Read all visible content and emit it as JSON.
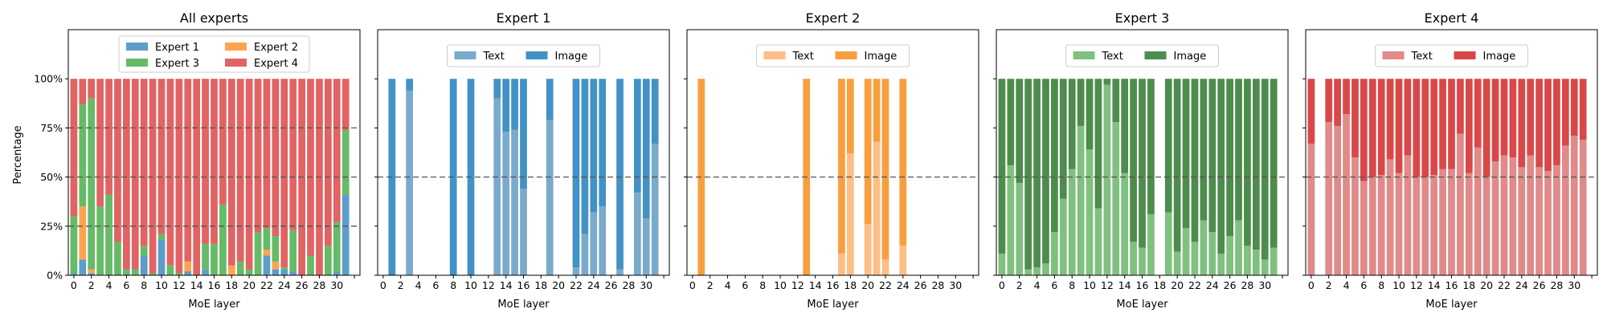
{
  "figure": {
    "ylabel": "Percentage",
    "xlabel": "MoE layer",
    "y_ticks": [
      "0%",
      "25%",
      "50%",
      "75%",
      "100%"
    ],
    "x_ticks": [
      "0",
      "2",
      "4",
      "6",
      "8",
      "10",
      "12",
      "14",
      "16",
      "18",
      "20",
      "22",
      "24",
      "26",
      "28",
      "30"
    ]
  },
  "chart_data": [
    {
      "type": "bar",
      "stacked": true,
      "title": "All experts",
      "xlabel": "MoE layer",
      "ylabel": "Percentage",
      "ylim": [
        0,
        125
      ],
      "reference_lines": [
        25,
        50,
        75
      ],
      "legend": {
        "placement": "upper-center",
        "columns": 2
      },
      "categories": [
        0,
        1,
        2,
        3,
        4,
        5,
        6,
        7,
        8,
        9,
        10,
        11,
        12,
        13,
        14,
        15,
        16,
        17,
        18,
        19,
        20,
        21,
        22,
        23,
        24,
        25,
        26,
        27,
        28,
        29,
        30,
        31
      ],
      "series": [
        {
          "name": "Expert 1",
          "color": "#1f77b4",
          "values": [
            1,
            8,
            1,
            0,
            0,
            0,
            0,
            0,
            10,
            0,
            18,
            0,
            0,
            2,
            0,
            3,
            0,
            0,
            0,
            0,
            0,
            0,
            10,
            3,
            3,
            2,
            0,
            0,
            0,
            0,
            2,
            41
          ]
        },
        {
          "name": "Expert 2",
          "color": "#ff7f0e",
          "values": [
            0,
            27,
            2,
            0,
            0,
            0,
            0,
            0,
            0,
            0,
            0,
            0,
            0,
            5,
            0,
            0,
            0,
            0,
            5,
            0,
            0,
            0,
            3,
            4,
            0,
            0,
            0,
            0,
            0,
            0,
            0,
            0
          ]
        },
        {
          "name": "Expert 3",
          "color": "#2ca02c",
          "values": [
            29,
            52,
            87,
            35,
            41,
            17,
            3,
            3,
            5,
            1,
            3,
            5,
            1,
            0,
            0,
            13,
            16,
            36,
            0,
            7,
            3,
            22,
            11,
            13,
            1,
            21,
            0,
            10,
            0,
            15,
            25,
            33
          ]
        },
        {
          "name": "Expert 4",
          "color": "#d62728",
          "values": [
            70,
            13,
            10,
            65,
            59,
            83,
            97,
            97,
            85,
            99,
            79,
            95,
            99,
            93,
            100,
            84,
            84,
            64,
            95,
            93,
            97,
            78,
            76,
            80,
            96,
            77,
            100,
            90,
            100,
            85,
            73,
            26
          ]
        }
      ]
    },
    {
      "type": "bar",
      "stacked": true,
      "title": "Expert 1",
      "xlabel": "MoE layer",
      "ylim": [
        0,
        125
      ],
      "reference_lines": [
        50
      ],
      "legend": {
        "placement": "upper-center",
        "columns": 2
      },
      "categories": [
        0,
        1,
        2,
        3,
        4,
        5,
        6,
        7,
        8,
        9,
        10,
        11,
        12,
        13,
        14,
        15,
        16,
        17,
        18,
        19,
        20,
        21,
        22,
        23,
        24,
        25,
        26,
        27,
        28,
        29,
        30,
        31
      ],
      "series": [
        {
          "name": "Text",
          "color": "#7aaacc",
          "values": [
            0,
            0,
            0,
            94,
            0,
            0,
            0,
            0,
            0,
            0,
            0,
            0,
            0,
            90,
            73,
            74,
            44,
            0,
            0,
            79,
            0,
            0,
            4,
            21,
            32,
            35,
            0,
            3,
            0,
            42,
            29,
            67
          ]
        },
        {
          "name": "Image",
          "color": "#4292c6",
          "values": [
            0,
            100,
            0,
            6,
            0,
            0,
            0,
            0,
            100,
            0,
            100,
            0,
            0,
            10,
            27,
            26,
            56,
            0,
            0,
            21,
            0,
            0,
            96,
            79,
            68,
            65,
            0,
            97,
            0,
            58,
            71,
            33
          ]
        }
      ]
    },
    {
      "type": "bar",
      "stacked": true,
      "title": "Expert 2",
      "xlabel": "MoE layer",
      "ylim": [
        0,
        125
      ],
      "reference_lines": [
        50
      ],
      "legend": {
        "placement": "upper-center",
        "columns": 2
      },
      "categories": [
        0,
        1,
        2,
        3,
        4,
        5,
        6,
        7,
        8,
        9,
        10,
        11,
        12,
        13,
        14,
        15,
        16,
        17,
        18,
        19,
        20,
        21,
        22,
        23,
        24,
        25,
        26,
        27,
        28,
        29,
        30,
        31
      ],
      "series": [
        {
          "name": "Text",
          "color": "#fdbf85",
          "values": [
            0,
            0,
            0,
            0,
            0,
            0,
            0,
            0,
            0,
            0,
            0,
            0,
            0,
            0,
            0,
            0,
            0,
            11,
            62,
            0,
            26,
            68,
            8,
            0,
            15,
            0,
            0,
            0,
            0,
            0,
            0,
            0
          ]
        },
        {
          "name": "Image",
          "color": "#f99e3f",
          "values": [
            0,
            100,
            0,
            0,
            0,
            0,
            0,
            0,
            0,
            0,
            0,
            0,
            0,
            100,
            0,
            0,
            0,
            89,
            38,
            0,
            74,
            32,
            92,
            0,
            85,
            0,
            0,
            0,
            0,
            0,
            0,
            0
          ]
        }
      ]
    },
    {
      "type": "bar",
      "stacked": true,
      "title": "Expert 3",
      "xlabel": "MoE layer",
      "ylim": [
        0,
        125
      ],
      "reference_lines": [
        50
      ],
      "legend": {
        "placement": "upper-center",
        "columns": 2
      },
      "categories": [
        0,
        1,
        2,
        3,
        4,
        5,
        6,
        7,
        8,
        9,
        10,
        11,
        12,
        13,
        14,
        15,
        16,
        17,
        18,
        19,
        20,
        21,
        22,
        23,
        24,
        25,
        26,
        27,
        28,
        29,
        30,
        31
      ],
      "series": [
        {
          "name": "Text",
          "color": "#80c080",
          "values": [
            11,
            56,
            47,
            3,
            4,
            6,
            22,
            39,
            54,
            76,
            64,
            34,
            97,
            78,
            52,
            17,
            14,
            31,
            0,
            32,
            12,
            24,
            17,
            28,
            22,
            11,
            20,
            28,
            15,
            13,
            8,
            14
          ]
        },
        {
          "name": "Image",
          "color": "#4d8c4d",
          "values": [
            89,
            44,
            53,
            97,
            96,
            94,
            78,
            61,
            46,
            24,
            36,
            66,
            3,
            22,
            48,
            83,
            86,
            69,
            0,
            68,
            88,
            76,
            83,
            72,
            78,
            89,
            80,
            72,
            85,
            87,
            92,
            86
          ]
        }
      ]
    },
    {
      "type": "bar",
      "stacked": true,
      "title": "Expert 4",
      "xlabel": "MoE layer",
      "ylim": [
        0,
        125
      ],
      "reference_lines": [
        50
      ],
      "legend": {
        "placement": "upper-center",
        "columns": 2
      },
      "categories": [
        0,
        1,
        2,
        3,
        4,
        5,
        6,
        7,
        8,
        9,
        10,
        11,
        12,
        13,
        14,
        15,
        16,
        17,
        18,
        19,
        20,
        21,
        22,
        23,
        24,
        25,
        26,
        27,
        28,
        29,
        30,
        31
      ],
      "series": [
        {
          "name": "Text",
          "color": "#e08a8a",
          "values": [
            67,
            0,
            78,
            76,
            82,
            60,
            48,
            50,
            51,
            59,
            52,
            61,
            50,
            50,
            51,
            54,
            54,
            72,
            52,
            65,
            50,
            58,
            61,
            60,
            55,
            61,
            55,
            53,
            56,
            66,
            71,
            69
          ]
        },
        {
          "name": "Image",
          "color": "#d94848",
          "values": [
            33,
            0,
            22,
            24,
            18,
            40,
            52,
            50,
            49,
            41,
            48,
            39,
            50,
            50,
            49,
            46,
            46,
            28,
            48,
            35,
            50,
            42,
            39,
            40,
            45,
            39,
            45,
            47,
            44,
            34,
            29,
            31
          ]
        }
      ]
    }
  ]
}
